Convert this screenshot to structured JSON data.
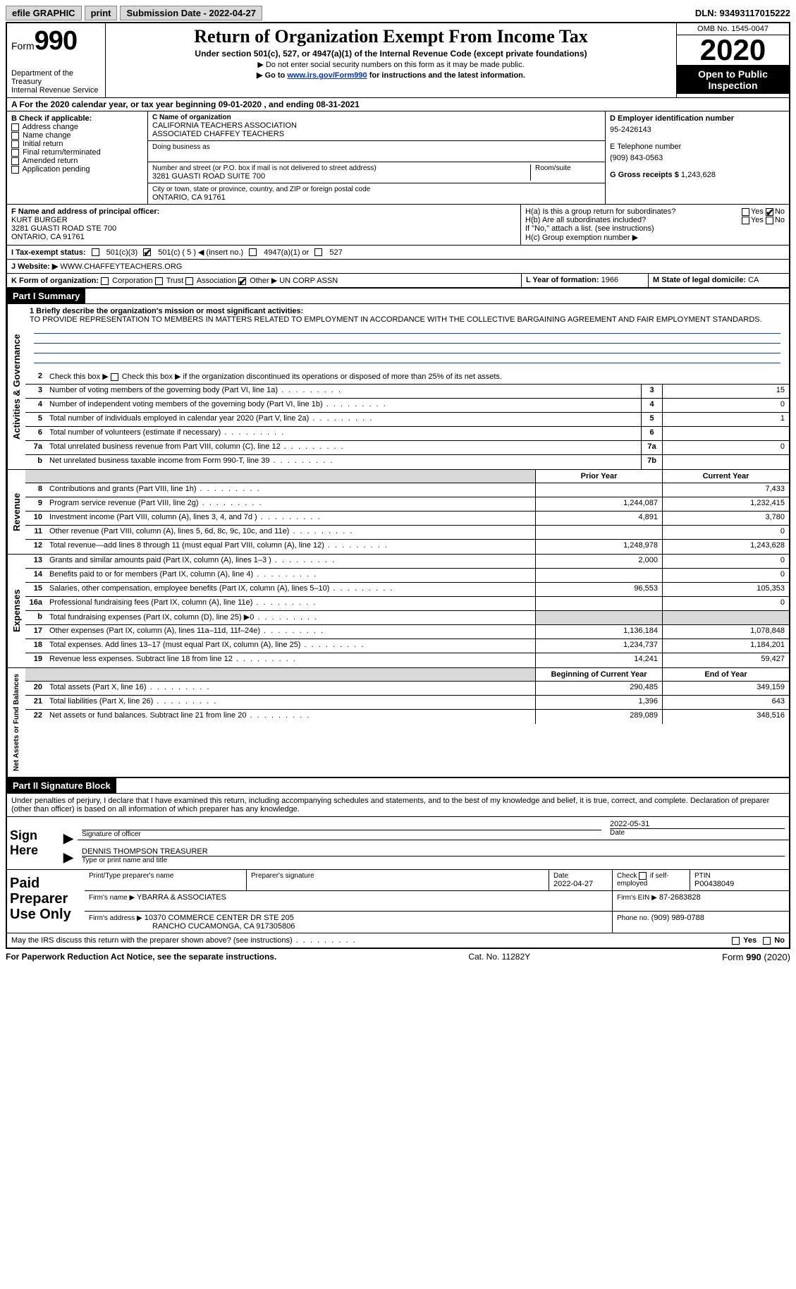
{
  "topbar": {
    "efile": "efile GRAPHIC",
    "print": "print",
    "submission_label": "Submission Date - 2022-04-27",
    "dln": "DLN: 93493117015222"
  },
  "header": {
    "form_word": "Form",
    "form_num": "990",
    "dept": "Department of the Treasury",
    "irs": "Internal Revenue Service",
    "title": "Return of Organization Exempt From Income Tax",
    "subtitle": "Under section 501(c), 527, or 4947(a)(1) of the Internal Revenue Code (except private foundations)",
    "note1": "▶ Do not enter social security numbers on this form as it may be made public.",
    "note2_pre": "▶ Go to ",
    "note2_link": "www.irs.gov/Form990",
    "note2_post": " for instructions and the latest information.",
    "omb": "OMB No. 1545-0047",
    "year": "2020",
    "open": "Open to Public Inspection"
  },
  "line_a": "A For the 2020 calendar year, or tax year beginning 09-01-2020   , and ending 08-31-2021",
  "box_b": {
    "label": "B Check if applicable:",
    "items": [
      "Address change",
      "Name change",
      "Initial return",
      "Final return/terminated",
      "Amended return",
      "Application pending"
    ]
  },
  "box_c": {
    "name_label": "C Name of organization",
    "name1": "CALIFORNIA TEACHERS ASSOCIATION",
    "name2": "ASSOCIATED CHAFFEY TEACHERS",
    "dba_label": "Doing business as",
    "addr_label": "Number and street (or P.O. box if mail is not delivered to street address)",
    "room_label": "Room/suite",
    "addr": "3281 GUASTI ROAD SUITE 700",
    "city_label": "City or town, state or province, country, and ZIP or foreign postal code",
    "city": "ONTARIO, CA  91761"
  },
  "box_d": {
    "label": "D Employer identification number",
    "value": "95-2426143",
    "phone_label": "E Telephone number",
    "phone": "(909) 843-0563",
    "gross_label": "G Gross receipts $",
    "gross": "1,243,628"
  },
  "box_f": {
    "label": "F Name and address of principal officer:",
    "name": "KURT BURGER",
    "addr1": "3281 GUASTI ROAD STE 700",
    "addr2": "ONTARIO, CA  91761"
  },
  "box_h": {
    "a": "H(a)  Is this a group return for subordinates?",
    "b": "H(b)  Are all subordinates included?",
    "b_note": "If \"No,\" attach a list. (see instructions)",
    "c": "H(c)  Group exemption number ▶",
    "yes": "Yes",
    "no": "No"
  },
  "row_i": {
    "label": "I  Tax-exempt status:",
    "opt1": "501(c)(3)",
    "opt2": "501(c) ( 5 ) ◀ (insert no.)",
    "opt3": "4947(a)(1) or",
    "opt4": "527"
  },
  "row_j": {
    "label": "J  Website: ▶",
    "value": "WWW.CHAFFEYTEACHERS.ORG"
  },
  "row_k": {
    "label": "K Form of organization:",
    "opts": [
      "Corporation",
      "Trust",
      "Association",
      "Other ▶"
    ],
    "other_val": "UN CORP ASSN",
    "l_label": "L Year of formation:",
    "l_val": "1966",
    "m_label": "M State of legal domicile:",
    "m_val": "CA"
  },
  "part1": {
    "title": "Part I    Summary",
    "q1_label": "1  Briefly describe the organization's mission or most significant activities:",
    "q1_text": "TO PROVIDE REPRESENTATION TO MEMBERS IN MATTERS RELATED TO EMPLOYMENT IN ACCORDANCE WITH THE COLLECTIVE BARGAINING AGREEMENT AND FAIR EMPLOYMENT STANDARDS.",
    "q2": "Check this box ▶     if the organization discontinued its operations or disposed of more than 25% of its net assets.",
    "rows_gov": [
      {
        "n": "3",
        "t": "Number of voting members of the governing body (Part VI, line 1a)",
        "box": "3",
        "v": "15"
      },
      {
        "n": "4",
        "t": "Number of independent voting members of the governing body (Part VI, line 1b)",
        "box": "4",
        "v": "0"
      },
      {
        "n": "5",
        "t": "Total number of individuals employed in calendar year 2020 (Part V, line 2a)",
        "box": "5",
        "v": "1"
      },
      {
        "n": "6",
        "t": "Total number of volunteers (estimate if necessary)",
        "box": "6",
        "v": ""
      },
      {
        "n": "7a",
        "t": "Total unrelated business revenue from Part VIII, column (C), line 12",
        "box": "7a",
        "v": "0"
      },
      {
        "n": "b",
        "t": "Net unrelated business taxable income from Form 990-T, line 39",
        "box": "7b",
        "v": ""
      }
    ],
    "col_prior": "Prior Year",
    "col_curr": "Current Year",
    "revenue": [
      {
        "n": "8",
        "t": "Contributions and grants (Part VIII, line 1h)",
        "p": "",
        "c": "7,433"
      },
      {
        "n": "9",
        "t": "Program service revenue (Part VIII, line 2g)",
        "p": "1,244,087",
        "c": "1,232,415"
      },
      {
        "n": "10",
        "t": "Investment income (Part VIII, column (A), lines 3, 4, and 7d )",
        "p": "4,891",
        "c": "3,780"
      },
      {
        "n": "11",
        "t": "Other revenue (Part VIII, column (A), lines 5, 6d, 8c, 9c, 10c, and 11e)",
        "p": "",
        "c": "0"
      },
      {
        "n": "12",
        "t": "Total revenue—add lines 8 through 11 (must equal Part VIII, column (A), line 12)",
        "p": "1,248,978",
        "c": "1,243,628"
      }
    ],
    "expenses": [
      {
        "n": "13",
        "t": "Grants and similar amounts paid (Part IX, column (A), lines 1–3 )",
        "p": "2,000",
        "c": "0"
      },
      {
        "n": "14",
        "t": "Benefits paid to or for members (Part IX, column (A), line 4)",
        "p": "",
        "c": "0"
      },
      {
        "n": "15",
        "t": "Salaries, other compensation, employee benefits (Part IX, column (A), lines 5–10)",
        "p": "96,553",
        "c": "105,353"
      },
      {
        "n": "16a",
        "t": "Professional fundraising fees (Part IX, column (A), line 11e)",
        "p": "",
        "c": "0"
      },
      {
        "n": "b",
        "t": "Total fundraising expenses (Part IX, column (D), line 25) ▶0",
        "p": "SHADE",
        "c": "SHADE"
      },
      {
        "n": "17",
        "t": "Other expenses (Part IX, column (A), lines 11a–11d, 11f–24e)",
        "p": "1,136,184",
        "c": "1,078,848"
      },
      {
        "n": "18",
        "t": "Total expenses. Add lines 13–17 (must equal Part IX, column (A), line 25)",
        "p": "1,234,737",
        "c": "1,184,201"
      },
      {
        "n": "19",
        "t": "Revenue less expenses. Subtract line 18 from line 12",
        "p": "14,241",
        "c": "59,427"
      }
    ],
    "col_beg": "Beginning of Current Year",
    "col_end": "End of Year",
    "netassets": [
      {
        "n": "20",
        "t": "Total assets (Part X, line 16)",
        "p": "290,485",
        "c": "349,159"
      },
      {
        "n": "21",
        "t": "Total liabilities (Part X, line 26)",
        "p": "1,396",
        "c": "643"
      },
      {
        "n": "22",
        "t": "Net assets or fund balances. Subtract line 21 from line 20",
        "p": "289,089",
        "c": "348,516"
      }
    ],
    "side_gov": "Activities & Governance",
    "side_rev": "Revenue",
    "side_exp": "Expenses",
    "side_net": "Net Assets or Fund Balances"
  },
  "part2": {
    "title": "Part II    Signature Block",
    "decl": "Under penalties of perjury, I declare that I have examined this return, including accompanying schedules and statements, and to the best of my knowledge and belief, it is true, correct, and complete. Declaration of preparer (other than officer) is based on all information of which preparer has any knowledge."
  },
  "sign": {
    "sign_here": "Sign Here",
    "sig_officer": "Signature of officer",
    "date": "Date",
    "date_val": "2022-05-31",
    "name": "DENNIS THOMPSON  TREASURER",
    "name_label": "Type or print name and title"
  },
  "paid": {
    "label": "Paid Preparer Use Only",
    "h1": "Print/Type preparer's name",
    "h2": "Preparer's signature",
    "h3": "Date",
    "h3v": "2022-04-27",
    "h4": "Check      if self-employed",
    "h5": "PTIN",
    "h5v": "P00438049",
    "firm_label": "Firm's name   ▶",
    "firm": "YBARRA & ASSOCIATES",
    "ein_label": "Firm's EIN ▶",
    "ein": "87-2683828",
    "addr_label": "Firm's address ▶",
    "addr1": "10370 COMMERCE CENTER DR STE 205",
    "addr2": "RANCHO CUCAMONGA, CA  917305806",
    "phone_label": "Phone no.",
    "phone": "(909) 989-0788"
  },
  "may_irs": "May the IRS discuss this return with the preparer shown above? (see instructions)",
  "footer": {
    "left": "For Paperwork Reduction Act Notice, see the separate instructions.",
    "mid": "Cat. No. 11282Y",
    "right": "Form 990 (2020)"
  }
}
